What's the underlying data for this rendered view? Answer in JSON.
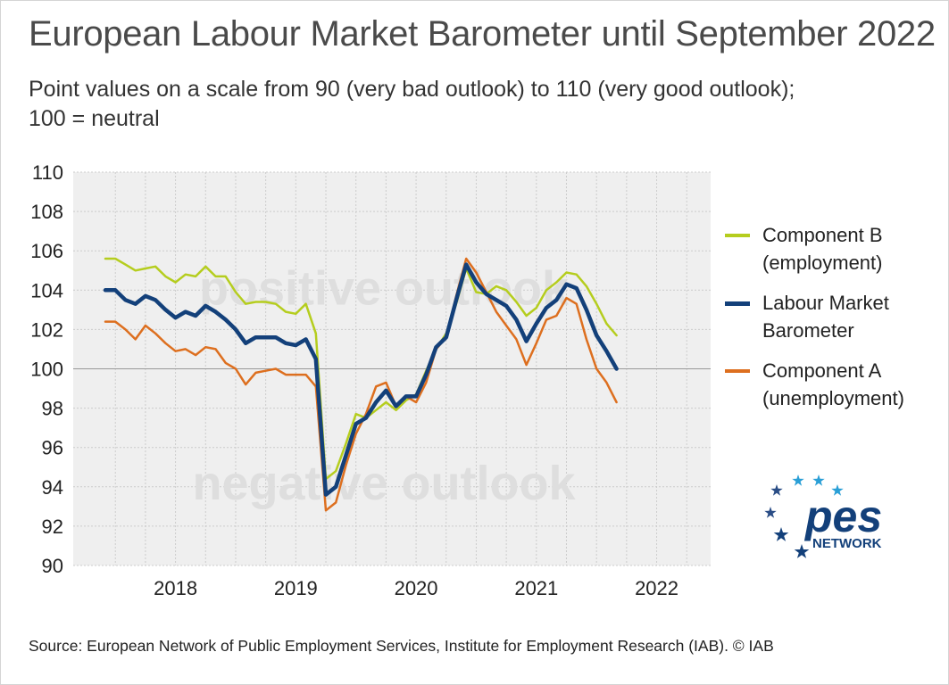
{
  "title": "European Labour Market Barometer until September 2022",
  "subtitle": [
    "Point values on a scale from 90 (very bad outlook) to 110 (very good outlook);",
    "100 = neutral"
  ],
  "source": "Source: European Network of Public Employment Services, Institute for Employment Research (IAB).  © IAB",
  "logo": {
    "text": "pes",
    "subtext": "NETWORK",
    "icon": "eu-stars-icon"
  },
  "colors": {
    "component_b": "#b5cd1e",
    "barometer": "#13407a",
    "component_a": "#dd6f1f",
    "neutral_line": "#999999",
    "plot_bg": "#efefef"
  },
  "chart_data": {
    "type": "line",
    "title": "European Labour Market Barometer until September 2022",
    "ylim": [
      90,
      110
    ],
    "yticks": [
      90,
      92,
      94,
      96,
      98,
      100,
      102,
      104,
      106,
      108,
      110
    ],
    "xtick_labels": [
      "2018",
      "2019",
      "2020",
      "2021",
      "2022"
    ],
    "x_start": "2017-12",
    "x_end": "2022-09",
    "neutral_value": 100,
    "grid": true,
    "legend_position": "right",
    "annotations": [
      "positive outlook",
      "negative outlook"
    ],
    "series": [
      {
        "name": [
          "Component B",
          "(employment)"
        ],
        "color_key": "component_b",
        "values": [
          105.6,
          105.6,
          105.3,
          105.0,
          105.1,
          105.2,
          104.7,
          104.4,
          104.8,
          104.7,
          105.2,
          104.7,
          104.7,
          103.9,
          103.3,
          103.4,
          103.4,
          103.3,
          102.9,
          102.8,
          103.3,
          101.8,
          94.4,
          94.8,
          96.2,
          97.7,
          97.5,
          97.9,
          98.3,
          97.9,
          98.4,
          98.7,
          99.9,
          101.0,
          101.8,
          103.3,
          105.1,
          103.9,
          103.8,
          104.2,
          104.0,
          103.4,
          102.7,
          103.1,
          104.0,
          104.4,
          104.9,
          104.8,
          104.2,
          103.3,
          102.3,
          101.7
        ]
      },
      {
        "name": [
          "Labour Market",
          "Barometer"
        ],
        "color_key": "barometer",
        "values": [
          104.0,
          104.0,
          103.5,
          103.3,
          103.7,
          103.5,
          103.0,
          102.6,
          102.9,
          102.7,
          103.2,
          102.9,
          102.5,
          102.0,
          101.3,
          101.6,
          101.6,
          101.6,
          101.3,
          101.2,
          101.5,
          100.5,
          93.6,
          94.0,
          95.6,
          97.2,
          97.5,
          98.3,
          98.9,
          98.1,
          98.6,
          98.6,
          99.7,
          101.1,
          101.6,
          103.5,
          105.3,
          104.4,
          103.8,
          103.5,
          103.2,
          102.5,
          101.4,
          102.3,
          103.1,
          103.5,
          104.3,
          104.1,
          103.0,
          101.7,
          100.9,
          100.0
        ]
      },
      {
        "name": [
          "Component A",
          "(unemployment)"
        ],
        "color_key": "component_a",
        "values": [
          102.4,
          102.4,
          102.0,
          101.5,
          102.2,
          101.8,
          101.3,
          100.9,
          101.0,
          100.7,
          101.1,
          101.0,
          100.3,
          100.0,
          99.2,
          99.8,
          99.9,
          100.0,
          99.7,
          99.7,
          99.7,
          99.1,
          92.8,
          93.2,
          95.1,
          96.7,
          97.7,
          99.1,
          99.3,
          98.1,
          98.6,
          98.3,
          99.3,
          101.0,
          101.6,
          103.7,
          105.6,
          104.9,
          103.9,
          102.9,
          102.2,
          101.5,
          100.2,
          101.3,
          102.5,
          102.7,
          103.6,
          103.3,
          101.5,
          100.0,
          99.3,
          98.3
        ]
      }
    ]
  }
}
